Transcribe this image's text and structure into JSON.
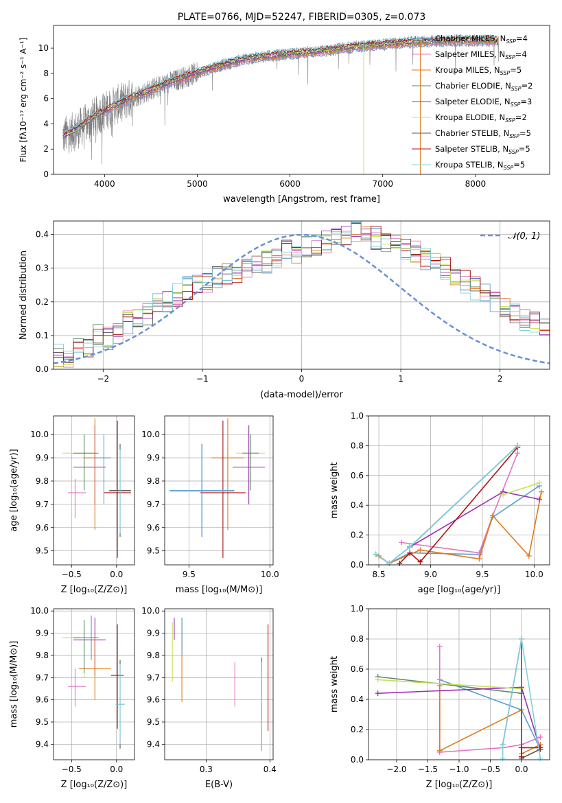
{
  "colors": {
    "Chabrier MILES": "#5b9bd5",
    "Salpeter MILES": "#e377c2",
    "Kroupa MILES": "#e07b1a",
    "Chabrier ELODIE": "#5a8a6a",
    "Salpeter ELODIE": "#9b30b0",
    "Kroupa ELODIE": "#c8e05a",
    "Chabrier STELIB": "#555555",
    "Salpeter STELIB": "#b01010",
    "Kroupa STELIB": "#80d0e0",
    "gaussian": "#6a8fd8",
    "data": "#808080"
  },
  "chart_data": [
    {
      "type": "line",
      "title": "PLATE=0766, MJD=52247, FIBERID=0305, z=0.073",
      "xlabel": "wavelength [Angstrom, rest frame]",
      "ylabel": "Flux [fλ10⁻¹⁷ erg cm⁻² s⁻¹ A⁻¹]",
      "xlim": [
        3450,
        8800
      ],
      "ylim": [
        0,
        11.8
      ],
      "xticks": [
        4000,
        5000,
        6000,
        7000,
        8000
      ],
      "yticks": [
        0,
        2,
        4,
        6,
        8,
        10
      ],
      "legend": "top-right",
      "legend_entries": [
        {
          "key": "Chabrier MILES",
          "pre": "Chabrier MILES, N",
          "n": "4"
        },
        {
          "key": "Salpeter MILES",
          "pre": "Salpeter MILES, N",
          "n": "4"
        },
        {
          "key": "Kroupa MILES",
          "pre": "Kroupa MILES, N",
          "n": "5"
        },
        {
          "key": "Chabrier ELODIE",
          "pre": "Chabrier ELODIE, N",
          "n": "2"
        },
        {
          "key": "Salpeter ELODIE",
          "pre": "Salpeter ELODIE, N",
          "n": "3"
        },
        {
          "key": "Kroupa ELODIE",
          "pre": "Kroupa ELODIE, N",
          "n": "2"
        },
        {
          "key": "Chabrier STELIB",
          "pre": "Chabrier STELIB, N",
          "n": "5"
        },
        {
          "key": "Salpeter STELIB",
          "pre": "Salpeter STELIB, N",
          "n": "5"
        },
        {
          "key": "Kroupa STELIB",
          "pre": "Kroupa STELIB, N",
          "n": "5"
        }
      ],
      "legend_sub": "SSP",
      "model_continuum": {
        "x": [
          3550,
          3700,
          3900,
          4100,
          4300,
          4600,
          4900,
          5200,
          5500,
          5800,
          6100,
          6400,
          6700,
          7000,
          7400,
          7800
        ],
        "y": [
          3.0,
          3.5,
          4.6,
          5.4,
          6.1,
          7.0,
          7.8,
          8.5,
          9.1,
          9.4,
          9.6,
          9.8,
          10.1,
          10.3,
          10.5,
          10.6
        ]
      }
    },
    {
      "type": "step",
      "xlabel": "(data-model)/error",
      "ylabel": "Normed distribution",
      "xlim": [
        -2.5,
        2.5
      ],
      "ylim": [
        0,
        0.44
      ],
      "xticks": [
        -2,
        -1,
        0,
        1,
        2
      ],
      "yticks": [
        0.0,
        0.1,
        0.2,
        0.3,
        0.4
      ],
      "legend": "top-right",
      "gaussian_label": "𝒩(0, 1)",
      "bin_edges_start": -2.5,
      "bin_width": 0.1,
      "base_histogram": [
        0.04,
        0.04,
        0.06,
        0.07,
        0.1,
        0.09,
        0.11,
        0.14,
        0.15,
        0.16,
        0.19,
        0.2,
        0.22,
        0.24,
        0.26,
        0.25,
        0.27,
        0.28,
        0.29,
        0.3,
        0.31,
        0.32,
        0.33,
        0.35,
        0.34,
        0.36,
        0.37,
        0.38,
        0.39,
        0.4,
        0.41,
        0.4,
        0.39,
        0.38,
        0.37,
        0.36,
        0.35,
        0.33,
        0.31,
        0.3,
        0.28,
        0.26,
        0.24,
        0.22,
        0.2,
        0.18,
        0.17,
        0.15,
        0.14,
        0.12,
        0.11
      ]
    },
    {
      "type": "scatter",
      "xlabel": "Z [log₁₀(Z/Z⊙)]",
      "ylabel": "age  [log₁₀(age/yr)]",
      "xlim": [
        -0.7,
        0.2
      ],
      "ylim": [
        9.44,
        10.08
      ],
      "xticks": [
        -0.5,
        0.0
      ],
      "yticks": [
        9.5,
        9.6,
        9.7,
        9.8,
        9.9,
        10.0
      ],
      "points": [
        {
          "key": "Kroupa ELODIE",
          "x": -0.36,
          "y": 9.92,
          "xe": [
            0.24,
            0.12
          ],
          "ye": [
            0.16,
            0.08
          ]
        },
        {
          "key": "Salpeter ELODIE",
          "x": -0.24,
          "y": 9.86,
          "xe": [
            0.24,
            0.12
          ],
          "ye": [
            0.16,
            0.18
          ]
        },
        {
          "key": "Salpeter MILES",
          "x": -0.46,
          "y": 9.75,
          "xe": [
            0.08,
            0.12
          ],
          "ye": [
            0.11,
            0.06
          ]
        },
        {
          "key": "Kroupa MILES",
          "x": -0.24,
          "y": 9.9,
          "xe": [
            0.12,
            0.18
          ],
          "ye": [
            0.31,
            0.17
          ]
        },
        {
          "key": "Chabrier ELODIE",
          "x": -0.36,
          "y": 9.92,
          "xe": [
            0.12,
            0.16
          ],
          "ye": [
            0.16,
            0.08
          ]
        },
        {
          "key": "Salpeter STELIB",
          "x": 0.01,
          "y": 9.75,
          "xe": [
            0.15,
            0.15
          ],
          "ye": [
            0.28,
            0.31
          ]
        },
        {
          "key": "Chabrier STELIB",
          "x": 0.04,
          "y": 9.76,
          "xe": [
            0.12,
            0.12
          ],
          "ye": [
            0.2,
            0.2
          ]
        },
        {
          "key": "Kroupa STELIB",
          "x": 0.04,
          "y": 9.755,
          "xe": [
            0.12,
            0.12
          ],
          "ye": [
            0.18,
            0.18
          ]
        },
        {
          "key": "Chabrier MILES",
          "x": -0.14,
          "y": 9.9,
          "xe": [
            0.12,
            0.08
          ],
          "ye": [
            0.2,
            0.1
          ]
        }
      ]
    },
    {
      "type": "scatter",
      "xlabel": "mass [log₁₀(M/M⊙)]",
      "ylabel": "",
      "xlim": [
        9.35,
        10.02
      ],
      "ylim": [
        9.44,
        10.08
      ],
      "xticks": [
        9.5,
        10.0
      ],
      "yticks": [
        9.5,
        9.6,
        9.7,
        9.8,
        9.9,
        10.0
      ],
      "points": [
        {
          "key": "Kroupa ELODIE",
          "x": 9.88,
          "y": 9.92,
          "xe": [
            0.09,
            0.09
          ],
          "ye": [
            0.16,
            0.08
          ]
        },
        {
          "key": "Salpeter ELODIE",
          "x": 9.87,
          "y": 9.86,
          "xe": [
            0.1,
            0.1
          ],
          "ye": [
            0.16,
            0.18
          ]
        },
        {
          "key": "Salpeter MILES",
          "x": 9.74,
          "y": 9.9,
          "xe": [
            0.06,
            0.06
          ],
          "ye": [
            0.11,
            0.06
          ]
        },
        {
          "key": "Kroupa MILES",
          "x": 9.74,
          "y": 9.9,
          "xe": [
            0.1,
            0.1
          ],
          "ye": [
            0.31,
            0.17
          ]
        },
        {
          "key": "Chabrier ELODIE",
          "x": 9.88,
          "y": 9.92,
          "xe": [
            0.05,
            0.05
          ],
          "ye": [
            0.16,
            0.08
          ]
        },
        {
          "key": "Salpeter STELIB",
          "x": 9.71,
          "y": 9.75,
          "xe": [
            0.14,
            0.14
          ],
          "ye": [
            0.28,
            0.31
          ]
        },
        {
          "key": "Chabrier STELIB",
          "x": 9.58,
          "y": 9.76,
          "xe": [
            0.2,
            0.2
          ],
          "ye": [
            0.2,
            0.2
          ]
        },
        {
          "key": "Kroupa STELIB",
          "x": 9.58,
          "y": 9.755,
          "xe": [
            0.2,
            0.2
          ],
          "ye": [
            0.18,
            0.18
          ]
        },
        {
          "key": "Chabrier MILES",
          "x": 9.58,
          "y": 9.76,
          "xe": [
            0.2,
            0.2
          ],
          "ye": [
            0.2,
            0.2
          ]
        }
      ]
    },
    {
      "type": "line",
      "xlabel": "age  [log₁₀(age/yr)]",
      "ylabel": "mass weight",
      "xlim": [
        8.4,
        10.15
      ],
      "ylim": [
        0,
        1.0
      ],
      "xticks": [
        8.5,
        9.0,
        9.5,
        10.0
      ],
      "yticks": [
        0.0,
        0.2,
        0.4,
        0.6,
        0.8,
        1.0
      ],
      "series": [
        {
          "key": "Chabrier MILES",
          "x": [
            8.47,
            8.6,
            8.8,
            9.47,
            9.6,
            10.05
          ],
          "y": [
            0.07,
            0.01,
            0.08,
            0.07,
            0.32,
            0.53
          ]
        },
        {
          "key": "Salpeter MILES",
          "x": [
            8.72,
            9.47,
            9.6,
            9.84
          ],
          "y": [
            0.15,
            0.08,
            0.33,
            0.75
          ]
        },
        {
          "key": "Kroupa MILES",
          "x": [
            8.5,
            8.6,
            8.9,
            9.47,
            9.6,
            9.95,
            10.07
          ],
          "y": [
            0.06,
            0.01,
            0.1,
            0.04,
            0.33,
            0.06,
            0.49
          ]
        },
        {
          "key": "Chabrier ELODIE",
          "x": [
            8.8,
            9.84
          ],
          "y": [
            0.12,
            0.8
          ]
        },
        {
          "key": "Salpeter ELODIE",
          "x": [
            8.8,
            9.7,
            10.05
          ],
          "y": [
            0.12,
            0.49,
            0.44
          ]
        },
        {
          "key": "Kroupa ELODIE",
          "x": [
            9.7,
            10.05
          ],
          "y": [
            0.47,
            0.55
          ]
        },
        {
          "key": "Chabrier STELIB",
          "x": [
            8.47,
            8.6,
            8.8,
            9.84
          ],
          "y": [
            0.07,
            0.01,
            0.12,
            0.8
          ]
        },
        {
          "key": "Salpeter STELIB",
          "x": [
            8.7,
            8.8,
            8.9,
            9.84
          ],
          "y": [
            0.01,
            0.08,
            0.02,
            0.79
          ]
        },
        {
          "key": "Kroupa STELIB",
          "x": [
            8.47,
            8.6,
            8.8,
            9.84
          ],
          "y": [
            0.07,
            0.01,
            0.12,
            0.8
          ]
        }
      ]
    },
    {
      "type": "scatter",
      "xlabel": "Z [log₁₀(Z/Z⊙)]",
      "ylabel": "mass [log₁₀(M/M⊙)]",
      "xlim": [
        -0.7,
        0.2
      ],
      "ylim": [
        9.33,
        10.01
      ],
      "xticks": [
        -0.5,
        0.0
      ],
      "yticks": [
        9.4,
        9.5,
        9.6,
        9.7,
        9.8,
        9.9,
        10.0
      ],
      "points": [
        {
          "key": "Kroupa ELODIE",
          "x": -0.36,
          "y": 9.88,
          "xe": [
            0.24,
            0.12
          ],
          "ye": [
            0.18,
            0.08
          ]
        },
        {
          "key": "Salpeter ELODIE",
          "x": -0.24,
          "y": 9.87,
          "xe": [
            0.24,
            0.12
          ],
          "ye": [
            0.16,
            0.1
          ]
        },
        {
          "key": "Salpeter MILES",
          "x": -0.46,
          "y": 9.66,
          "xe": [
            0.08,
            0.12
          ],
          "ye": [
            0.09,
            0.08
          ]
        },
        {
          "key": "Kroupa MILES",
          "x": -0.24,
          "y": 9.74,
          "xe": [
            0.18,
            0.18
          ],
          "ye": [
            0.14,
            0.14
          ]
        },
        {
          "key": "Chabrier ELODIE",
          "x": -0.36,
          "y": 9.88,
          "xe": [
            0.12,
            0.16
          ],
          "ye": [
            0.16,
            0.08
          ]
        },
        {
          "key": "Salpeter STELIB",
          "x": 0.01,
          "y": 9.71,
          "xe": [
            0.07,
            0.07
          ],
          "ye": [
            0.24,
            0.23
          ]
        },
        {
          "key": "Chabrier STELIB",
          "x": 0.04,
          "y": 9.58,
          "xe": [
            0.05,
            0.05
          ],
          "ye": [
            0.2,
            0.2
          ]
        },
        {
          "key": "Kroupa STELIB",
          "x": 0.04,
          "y": 9.58,
          "xe": [
            0.05,
            0.05
          ],
          "ye": [
            0.18,
            0.18
          ]
        },
        {
          "key": "Chabrier MILES",
          "x": -0.28,
          "y": 9.88,
          "xe": [
            0.12,
            0.08
          ],
          "ye": [
            0.1,
            0.1
          ]
        }
      ]
    },
    {
      "type": "scatter",
      "xlabel": "E(B-V)",
      "ylabel": "",
      "xlim": [
        0.235,
        0.405
      ],
      "ylim": [
        9.33,
        10.01
      ],
      "xticks": [
        0.3,
        0.4
      ],
      "yticks": [
        9.4,
        9.5,
        9.6,
        9.7,
        9.8,
        9.9,
        10.0
      ],
      "points": [
        {
          "key": "Kroupa ELODIE",
          "x": 0.247,
          "y": 9.85,
          "xe": [
            0,
            0
          ],
          "ye": [
            0.17,
            0.1
          ]
        },
        {
          "key": "Salpeter ELODIE",
          "x": 0.25,
          "y": 9.93,
          "xe": [
            0,
            0
          ],
          "ye": [
            0.06,
            0.04
          ]
        },
        {
          "key": "Salpeter MILES",
          "x": 0.345,
          "y": 9.67,
          "xe": [
            0,
            0
          ],
          "ye": [
            0.1,
            0.1
          ]
        },
        {
          "key": "Kroupa MILES",
          "x": 0.262,
          "y": 9.75,
          "xe": [
            0,
            0
          ],
          "ye": [
            0.16,
            0.16
          ]
        },
        {
          "key": "Chabrier ELODIE",
          "x": 0.262,
          "y": 9.9,
          "xe": [
            0,
            0
          ],
          "ye": [
            0.07,
            0.07
          ]
        },
        {
          "key": "Salpeter STELIB",
          "x": 0.397,
          "y": 9.7,
          "xe": [
            0,
            0
          ],
          "ye": [
            0.24,
            0.24
          ]
        },
        {
          "key": "Chabrier STELIB",
          "x": 0.387,
          "y": 9.58,
          "xe": [
            0,
            0
          ],
          "ye": [
            0.21,
            0.21
          ]
        },
        {
          "key": "Kroupa STELIB",
          "x": 0.387,
          "y": 9.57,
          "xe": [
            0,
            0
          ],
          "ye": [
            0.2,
            0.2
          ]
        },
        {
          "key": "Chabrier MILES",
          "x": 0.262,
          "y": 9.88,
          "xe": [
            0,
            0
          ],
          "ye": [
            0.08,
            0.08
          ]
        }
      ]
    },
    {
      "type": "line",
      "xlabel": "Z [log₁₀(Z/Z⊙)]",
      "ylabel": "mass weight",
      "xlim": [
        -2.45,
        0.45
      ],
      "ylim": [
        0,
        1.0
      ],
      "xticks": [
        -2.0,
        -1.5,
        -1.0,
        -0.5,
        0.0
      ],
      "yticks": [
        0.0,
        0.2,
        0.4,
        0.6,
        0.8,
        1.0
      ],
      "series": [
        {
          "key": "Chabrier MILES",
          "x": [
            -1.31,
            0.0,
            0.3
          ],
          "y": [
            0.53,
            0.33,
            0.07
          ]
        },
        {
          "key": "Salpeter MILES",
          "x": [
            -1.31,
            -1.31,
            -0.3,
            0.0,
            0.3
          ],
          "y": [
            0.75,
            0.05,
            0.08,
            0.1,
            0.15
          ]
        },
        {
          "key": "Kroupa MILES",
          "x": [
            -1.31,
            -1.31,
            0.0,
            0.0,
            0.3
          ],
          "y": [
            0.49,
            0.06,
            0.33,
            0.04,
            0.1
          ]
        },
        {
          "key": "Chabrier ELODIE",
          "x": [
            -2.3,
            0.0
          ],
          "y": [
            0.55,
            0.44
          ]
        },
        {
          "key": "Salpeter ELODIE",
          "x": [
            -2.3,
            0.0,
            0.3
          ],
          "y": [
            0.44,
            0.48,
            0.07
          ]
        },
        {
          "key": "Kroupa ELODIE",
          "x": [
            -2.3,
            0.0
          ],
          "y": [
            0.53,
            0.47
          ]
        },
        {
          "key": "Chabrier STELIB",
          "x": [
            -0.3,
            0.0,
            0.0,
            0.3
          ],
          "y": [
            0.1,
            0.8,
            0.01,
            0.07
          ]
        },
        {
          "key": "Salpeter STELIB",
          "x": [
            0.0,
            0.0,
            0.3
          ],
          "y": [
            0.02,
            0.08,
            0.08
          ]
        },
        {
          "key": "Kroupa STELIB",
          "x": [
            -0.3,
            -0.3,
            0.0,
            0.3
          ],
          "y": [
            0.01,
            0.1,
            0.8,
            0.01
          ]
        }
      ]
    }
  ]
}
